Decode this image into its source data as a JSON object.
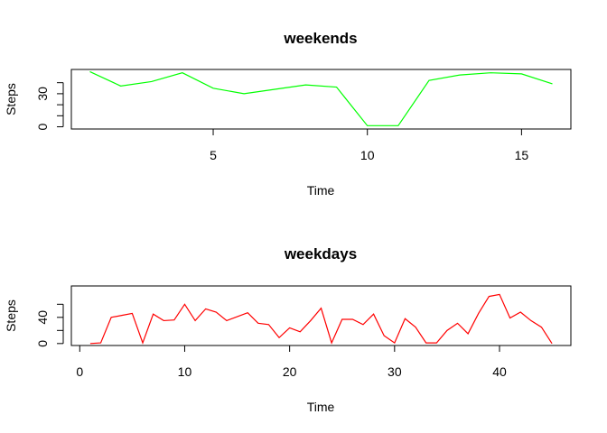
{
  "chart_data": [
    {
      "type": "line",
      "title": "weekends",
      "xlabel": "Time",
      "ylabel": "Steps",
      "xlim": [
        0.4,
        16.6
      ],
      "ylim": [
        -2,
        52
      ],
      "x_ticks": [
        5,
        10,
        15
      ],
      "y_ticks": [
        0,
        30
      ],
      "y_minor_ticks": [
        10,
        20,
        40
      ],
      "grid": false,
      "legend": "none",
      "color": "#00ff00",
      "x": [
        1,
        2,
        3,
        4,
        5,
        6,
        7,
        8,
        9,
        10,
        11,
        12,
        13,
        14,
        15,
        16
      ],
      "values": [
        50,
        37,
        41,
        49,
        35,
        30,
        34,
        38,
        36,
        1,
        1,
        42,
        47,
        49,
        48,
        39
      ]
    },
    {
      "type": "line",
      "title": "weekdays",
      "xlabel": "Time",
      "ylabel": "Steps",
      "xlim": [
        -0.8,
        46.8
      ],
      "ylim": [
        -3,
        88
      ],
      "x_ticks": [
        0,
        10,
        20,
        30,
        40
      ],
      "y_ticks": [
        0,
        40
      ],
      "y_minor_ticks": [
        20,
        60
      ],
      "grid": false,
      "legend": "none",
      "color": "#ff0000",
      "x": [
        1,
        2,
        3,
        4,
        5,
        6,
        7,
        8,
        9,
        10,
        11,
        12,
        13,
        14,
        15,
        16,
        17,
        18,
        19,
        20,
        21,
        22,
        23,
        24,
        25,
        26,
        27,
        28,
        29,
        30,
        31,
        32,
        33,
        34,
        35,
        36,
        37,
        38,
        39,
        40,
        41,
        42,
        43,
        44,
        45
      ],
      "values": [
        0,
        1,
        40,
        43,
        46,
        1,
        45,
        35,
        36,
        60,
        35,
        53,
        48,
        35,
        41,
        47,
        31,
        29,
        9,
        24,
        18,
        35,
        54,
        1,
        37,
        37,
        29,
        45,
        12,
        1,
        38,
        25,
        1,
        1,
        20,
        31,
        15,
        46,
        72,
        75,
        39,
        48,
        35,
        25,
        0
      ]
    }
  ]
}
